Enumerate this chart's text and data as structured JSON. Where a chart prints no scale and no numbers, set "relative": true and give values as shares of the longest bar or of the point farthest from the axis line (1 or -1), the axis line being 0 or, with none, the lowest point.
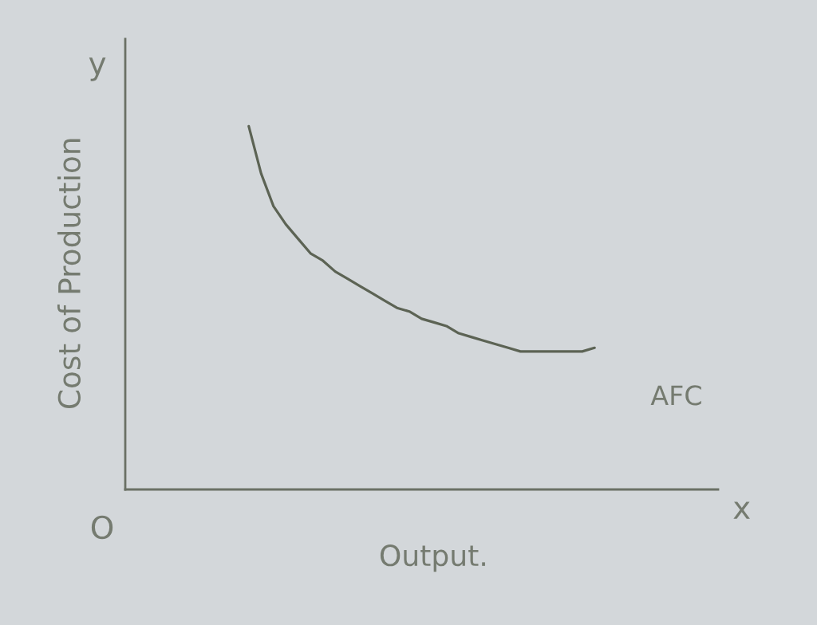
{
  "chart_data": {
    "type": "line",
    "relative": true,
    "xlabel": "Output.",
    "ylabel": "Cost of Production",
    "annotations": [
      "O",
      "x",
      "y"
    ],
    "categories": [
      null,
      null,
      null,
      null,
      null,
      null,
      null,
      null,
      null,
      null,
      null,
      null,
      null,
      null,
      null,
      null,
      null,
      null,
      null,
      null,
      null,
      null,
      null,
      null,
      null,
      null,
      null,
      null,
      null,
      null,
      null,
      null,
      null,
      null,
      null,
      null,
      null,
      null,
      null,
      null,
      null,
      null,
      null,
      null,
      null,
      null,
      null,
      null
    ],
    "series": [
      {
        "name": "AFC",
        "color": "#5c6354",
        "values": [
          null,
          null,
          null,
          null,
          null,
          null,
          null,
          null,
          null,
          1.0,
          0.87,
          0.78,
          0.73,
          0.69,
          0.65,
          0.63,
          0.6,
          0.58,
          0.56,
          0.54,
          0.52,
          0.5,
          0.49,
          0.47,
          0.46,
          0.45,
          0.43,
          0.42,
          0.41,
          0.4,
          0.39,
          0.38,
          0.38,
          0.38,
          0.38,
          0.38,
          0.38,
          0.39,
          null,
          null,
          null,
          null,
          null,
          null,
          null,
          null,
          null,
          null
        ]
      }
    ]
  }
}
